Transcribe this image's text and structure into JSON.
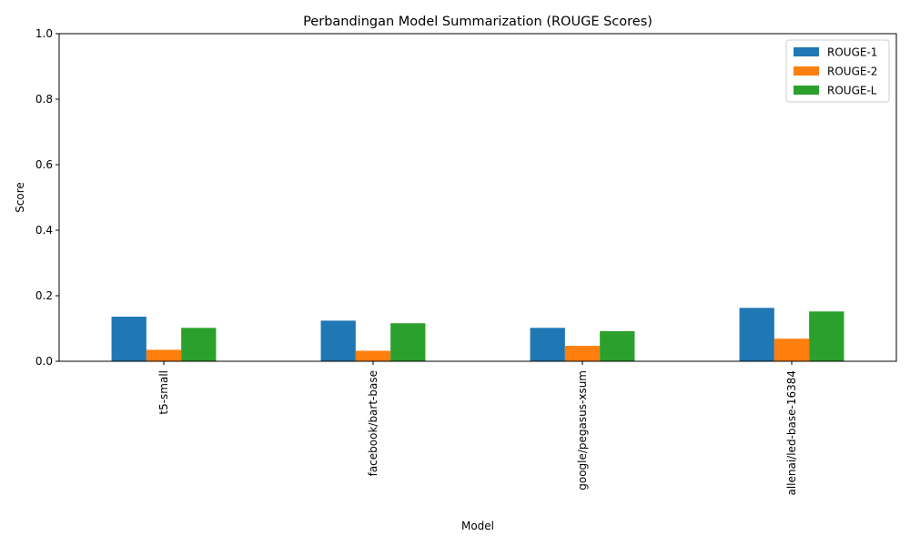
{
  "chart_data": {
    "type": "bar",
    "title": "Perbandingan Model Summarization (ROUGE Scores)",
    "xlabel": "Model",
    "ylabel": "Score",
    "ylim": [
      0,
      1.0
    ],
    "yticks": [
      "0.0",
      "0.2",
      "0.4",
      "0.6",
      "0.8",
      "1.0"
    ],
    "categories": [
      "t5-small",
      "facebook/bart-base",
      "google/pegasus-xsum",
      "allenai/led-base-16384"
    ],
    "series": [
      {
        "name": "ROUGE-1",
        "color": "#1f77b4",
        "values": [
          0.136,
          0.124,
          0.102,
          0.163
        ]
      },
      {
        "name": "ROUGE-2",
        "color": "#ff7f0e",
        "values": [
          0.035,
          0.032,
          0.047,
          0.069
        ]
      },
      {
        "name": "ROUGE-L",
        "color": "#2ca02c",
        "values": [
          0.102,
          0.116,
          0.092,
          0.152
        ]
      }
    ],
    "grid": false,
    "legend_position": "top-right"
  }
}
